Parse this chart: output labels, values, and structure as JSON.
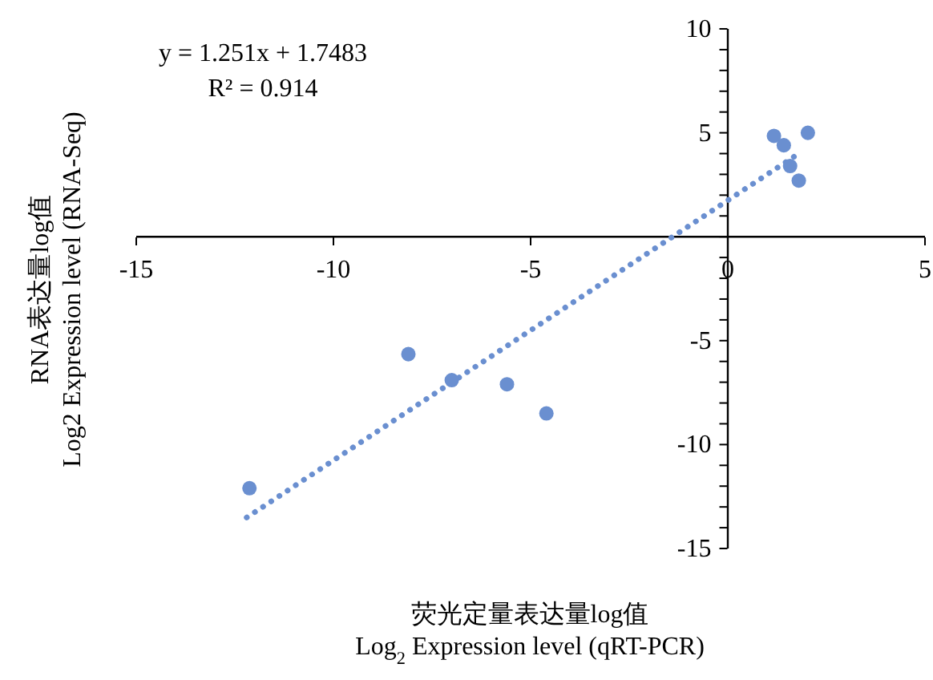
{
  "chart_data": {
    "type": "scatter",
    "xlabel": "荧光定量表达量log值\nLog$_{2}$ Expression level (qRT-PCR)",
    "ylabel": "RNA表达量log值\nLog2 Expression level (RNA-Seq)",
    "annotations": [
      "y = 1.251x + 1.7483",
      "R² = 0.914"
    ],
    "series": [
      {
        "color": "#6a8fd0",
        "x": [
          -12.13,
          -8.1,
          -7.0,
          -5.6,
          -4.6,
          1.17,
          1.42,
          2.03,
          1.58,
          1.8
        ],
        "values": [
          -12.1,
          -5.65,
          -6.9,
          -7.1,
          -8.5,
          4.85,
          4.4,
          5.0,
          3.4,
          2.7
        ]
      },
      {
        "type": "line",
        "color": "#6a8fd0",
        "line_style": "dotted",
        "marker": "none",
        "x": [
          -12.2,
          1.8
        ],
        "values": [
          -13.51,
          4.0
        ]
      }
    ],
    "xlim": [
      -15,
      5
    ],
    "xticks": [
      -15,
      -10,
      -5,
      0,
      5
    ],
    "ylim": [
      -15,
      10
    ],
    "yticks": [
      -15,
      {
        "value": -14,
        "label": null
      },
      {
        "value": -13,
        "label": null
      },
      {
        "value": -12,
        "label": null
      },
      {
        "value": -11,
        "label": null
      },
      -10,
      {
        "value": -9,
        "label": null
      },
      {
        "value": -8,
        "label": null
      },
      {
        "value": -7,
        "label": null
      },
      {
        "value": -6,
        "label": null
      },
      -5,
      {
        "value": -4,
        "label": null
      },
      {
        "value": -3,
        "label": null
      },
      {
        "value": -2,
        "label": null
      },
      {
        "value": -1,
        "label": null
      },
      {
        "value": 0,
        "label": null
      },
      {
        "value": 1,
        "label": null
      },
      {
        "value": 2,
        "label": null
      },
      {
        "value": 3,
        "label": null
      },
      {
        "value": 4,
        "label": null
      },
      5,
      {
        "value": 6,
        "label": null
      },
      {
        "value": 7,
        "label": null
      },
      {
        "value": 8,
        "label": null
      },
      {
        "value": 9,
        "label": null
      },
      10
    ],
    "grid": false,
    "legend": false
  }
}
